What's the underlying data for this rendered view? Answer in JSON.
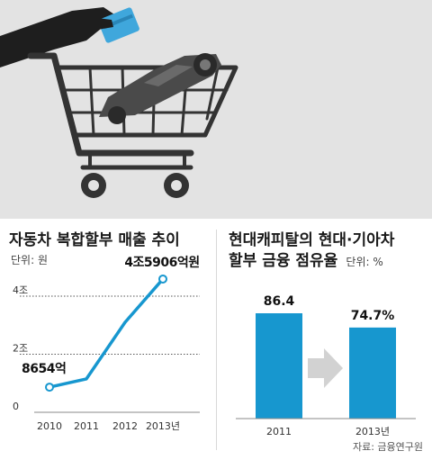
{
  "left_chart": {
    "title": "자동차 복합할부 매출 추이",
    "unit_label": "단위: 원"
  },
  "right_chart": {
    "title_line1": "현대캐피탈의 현대·기아차",
    "title_line2": "할부 금융 점유율",
    "unit_label": "단위: %"
  },
  "source": "자료: 금융연구원",
  "colors": {
    "primary": "#1797cf",
    "arrow": "#d2d2d2",
    "hero_background": "#e3e3e3",
    "gridline": "#555555"
  },
  "chart_data": [
    {
      "type": "line",
      "categories": [
        "2010",
        "2011",
        "2012",
        "2013년"
      ],
      "values": [
        0.8654,
        1.15,
        3.1,
        4.5906
      ],
      "ylim": [
        0,
        4.8
      ],
      "y_ticks": [
        {
          "value": 4,
          "label": "4조"
        },
        {
          "value": 2,
          "label": "2조"
        },
        {
          "value": 0,
          "label": "0"
        }
      ],
      "annotations": [
        {
          "index": 0,
          "text": "8654억"
        },
        {
          "index": 3,
          "text": "4조5906억원"
        }
      ]
    },
    {
      "type": "bar",
      "categories": [
        "2011",
        "2013년"
      ],
      "values": [
        86.4,
        74.7
      ],
      "value_labels": [
        "86.4",
        "74.7%"
      ],
      "ylim": [
        0,
        100
      ]
    }
  ]
}
